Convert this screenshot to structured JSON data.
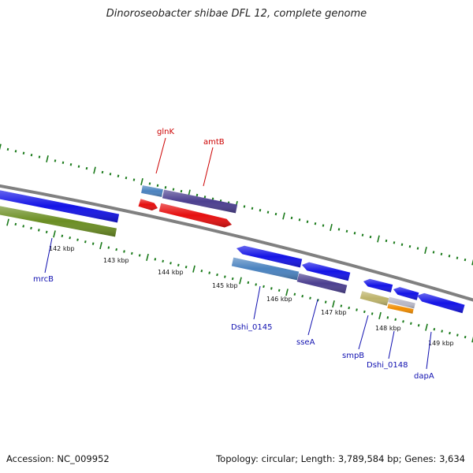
{
  "title": "Dinoroseobacter shibae DFL 12, complete genome",
  "footer": {
    "accession": "Accession: NC_009952",
    "topology": "Topology: circular; Length: 3,789,584 bp; Genes: 3,634"
  },
  "colors": {
    "backbone": "#808080",
    "tick": "#1a7a1a",
    "blue_gene": "#1414e6",
    "red_gene": "#e60f0f",
    "steel_gene": "#4a82bf",
    "purple_gene": "#4b3f8f",
    "olive_gene": "#6b8e23",
    "khaki_gene": "#bdb36a",
    "gray_gene": "#b8b8c8",
    "orange_gene": "#f08c00",
    "label_red": "#cc0000",
    "label_blue": "#1010b0"
  },
  "scale_labels": [
    "142 kbp",
    "143 kbp",
    "144 kbp",
    "145 kbp",
    "146 kbp",
    "147 kbp",
    "148 kbp",
    "149 kbp"
  ],
  "gene_labels": [
    "glnK",
    "amtB",
    "mrcB",
    "Dshi_0145",
    "sseA",
    "smpB",
    "Dshi_0148",
    "dapA"
  ]
}
